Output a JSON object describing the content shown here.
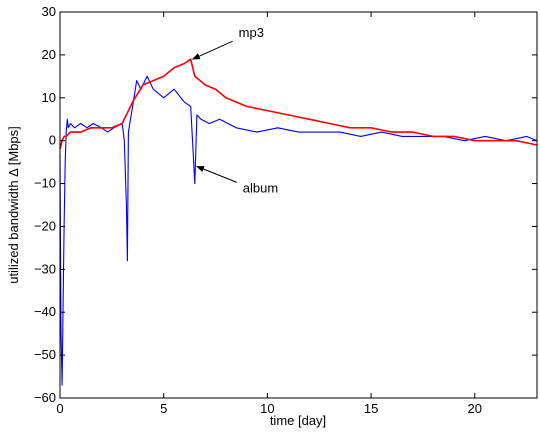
{
  "chart_data": {
    "type": "line",
    "title": "",
    "xlabel": "time [day]",
    "ylabel": "utilized bandwidth Δ [Mbps]",
    "xlim": [
      0,
      23
    ],
    "ylim": [
      -60,
      30
    ],
    "xticks": [
      0,
      5,
      10,
      15,
      20
    ],
    "xtick_labels": [
      "0",
      "5",
      "10",
      "15",
      "20"
    ],
    "yticks": [
      -60,
      -50,
      -40,
      -30,
      -20,
      -10,
      0,
      10,
      20,
      30
    ],
    "ytick_labels": [
      "−60",
      "−50",
      "−40",
      "−30",
      "−20",
      "−10",
      "0",
      "10",
      "20",
      "30"
    ],
    "grid": false,
    "legend": "none",
    "annotations": [
      {
        "text": "mp3",
        "x": 6.3,
        "y": 19
      },
      {
        "text": "album",
        "x": 6.5,
        "y": -6
      }
    ],
    "series": [
      {
        "name": "album",
        "color": "#0000ff",
        "x": [
          0,
          0.05,
          0.1,
          0.15,
          0.2,
          0.25,
          0.3,
          0.35,
          0.4,
          0.5,
          0.7,
          1.0,
          1.3,
          1.6,
          2.0,
          2.3,
          2.6,
          3.0,
          3.1,
          3.2,
          3.25,
          3.3,
          3.5,
          3.7,
          3.9,
          4.2,
          4.5,
          5.0,
          5.5,
          6.0,
          6.3,
          6.5,
          6.6,
          6.8,
          7.2,
          7.7,
          8.5,
          9.5,
          10.5,
          11.5,
          12.5,
          13.5,
          14.5,
          15.5,
          16.5,
          17.5,
          18.5,
          19.5,
          20.5,
          21.5,
          22.5,
          23.0
        ],
        "y": [
          -3,
          -45,
          -57,
          -38,
          -20,
          -5,
          2,
          5,
          3,
          4,
          3,
          4,
          3,
          4,
          3,
          2,
          3,
          4,
          0,
          -15,
          -28,
          2,
          8,
          14,
          12,
          15,
          12,
          10,
          12,
          9,
          8,
          -10,
          6,
          5,
          4,
          5,
          3,
          2,
          3,
          2,
          2,
          2,
          1,
          2,
          1,
          1,
          1,
          0,
          1,
          0,
          1,
          0
        ]
      },
      {
        "name": "mp3",
        "color": "#ff0000",
        "x": [
          0,
          0.1,
          0.2,
          0.3,
          0.5,
          1.0,
          1.5,
          2.0,
          2.5,
          3.0,
          3.5,
          4.0,
          4.5,
          5.0,
          5.5,
          6.0,
          6.3,
          6.5,
          7.0,
          7.5,
          8.0,
          8.5,
          9.0,
          10.0,
          11.0,
          12.0,
          13.0,
          14.0,
          15.0,
          16.0,
          17.0,
          18.0,
          19.0,
          20.0,
          21.0,
          22.0,
          23.0
        ],
        "y": [
          -2,
          0,
          1,
          1,
          2,
          2,
          3,
          3,
          3,
          4,
          9,
          13,
          14,
          15,
          17,
          18,
          19,
          15,
          13,
          12,
          10,
          9,
          8,
          7,
          6,
          5,
          4,
          3,
          3,
          2,
          2,
          1,
          1,
          0,
          0,
          0,
          -1
        ]
      }
    ]
  }
}
